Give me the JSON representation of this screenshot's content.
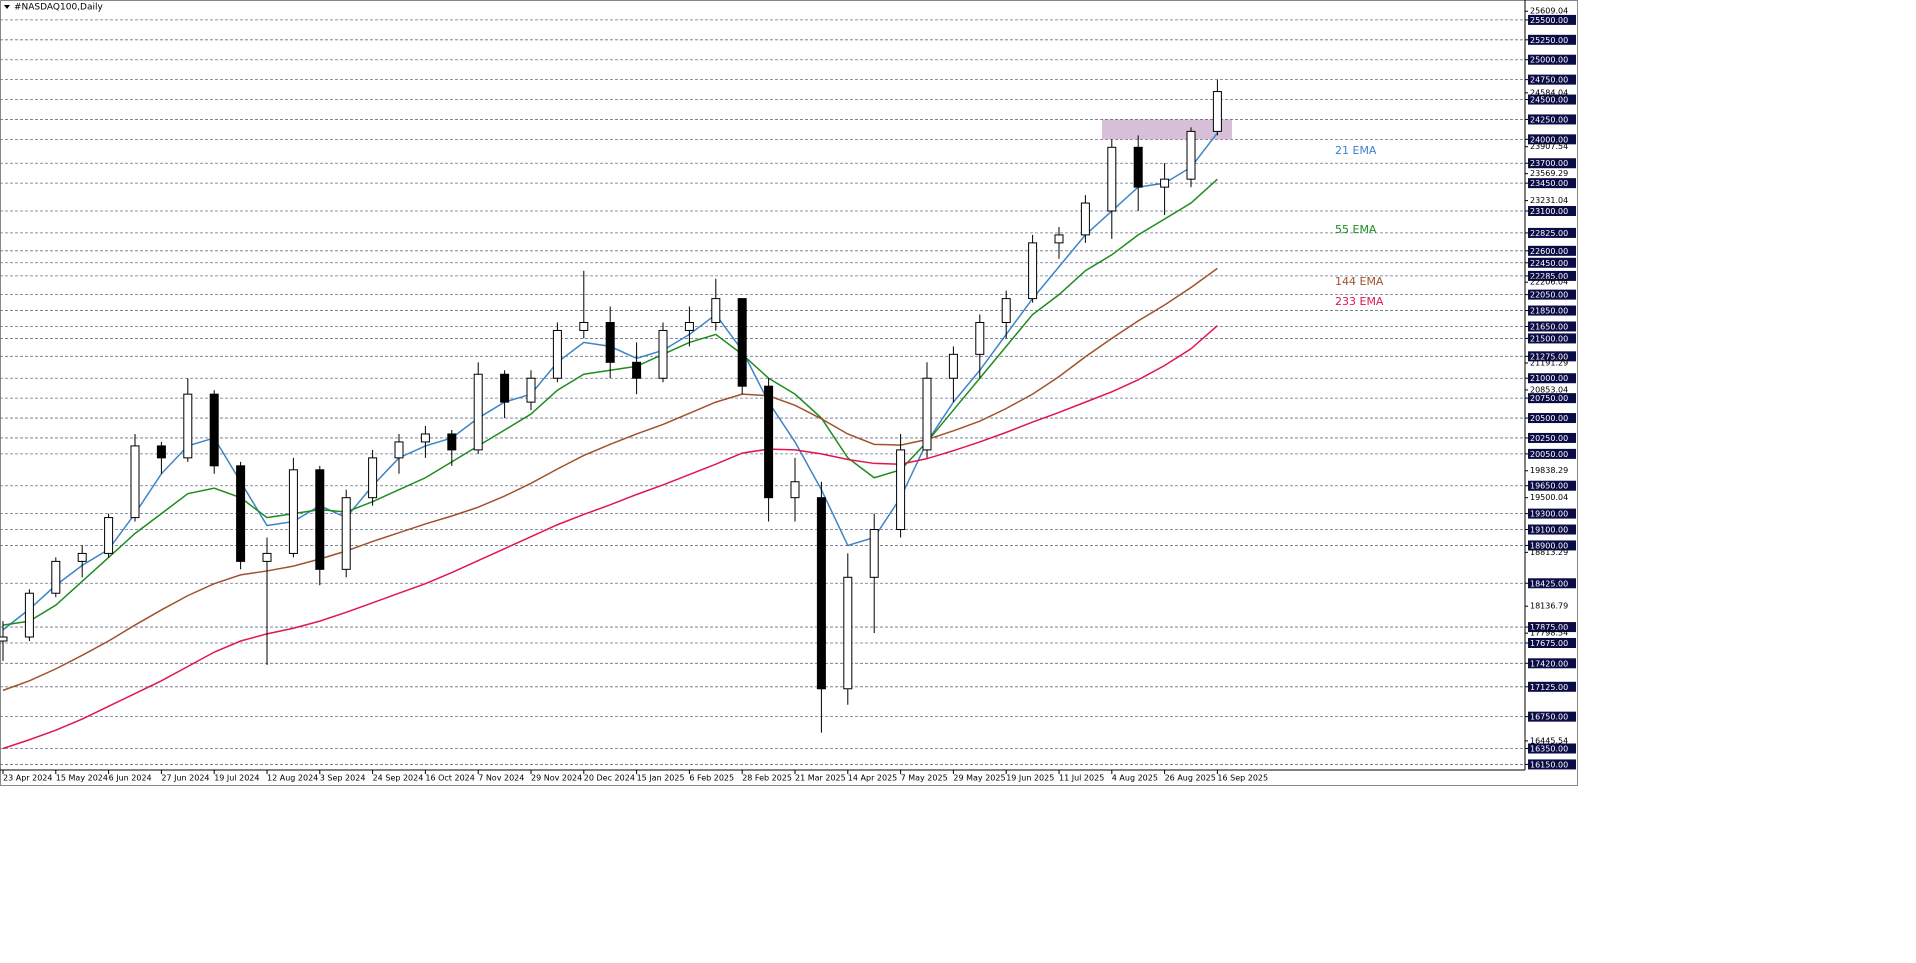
{
  "chart_data": {
    "type": "candlestick",
    "title": "#NASDAQ100,Daily",
    "categories": [
      "23 Apr 2024",
      null,
      "15 May 2024",
      null,
      "6 Jun 2024",
      null,
      "27 Jun 2024",
      null,
      "19 Jul 2024",
      null,
      "12 Aug 2024",
      null,
      "3 Sep 2024",
      null,
      "24 Sep 2024",
      null,
      "16 Oct 2024",
      null,
      "7 Nov 2024",
      null,
      "29 Nov 2024",
      null,
      "20 Dec 2024",
      null,
      "15 Jan 2025",
      null,
      "6 Feb 2025",
      null,
      "28 Feb 2025",
      null,
      "21 Mar 2025",
      null,
      "14 Apr 2025",
      null,
      "7 May 2025",
      null,
      "29 May 2025",
      null,
      "19 Jun 2025",
      null,
      "11 Jul 2025",
      null,
      "4 Aug 2025",
      null,
      "26 Aug 2025",
      null,
      "16 Sep 2025"
    ],
    "ohlc": {
      "open": [
        17700,
        17750,
        18300,
        18700,
        18800,
        19250,
        20150,
        20000,
        20800,
        19900,
        18700,
        18800,
        19850,
        18600,
        19500,
        20000,
        20200,
        20300,
        20100,
        21050,
        20700,
        21000,
        21600,
        21700,
        21200,
        21000,
        21600,
        21700,
        22000,
        20900,
        19500,
        19500,
        17100,
        18500,
        19100,
        20100,
        21000,
        21300,
        21700,
        22000,
        22700,
        22800,
        23100,
        23900,
        23400,
        23500,
        24100
      ],
      "high": [
        17950,
        18350,
        18750,
        18900,
        19300,
        20300,
        20200,
        21000,
        20850,
        19950,
        19000,
        20000,
        19900,
        19600,
        20100,
        20300,
        20400,
        20350,
        21200,
        21100,
        21100,
        21700,
        22350,
        21900,
        21450,
        21700,
        21900,
        22250,
        22000,
        21000,
        20000,
        19700,
        18800,
        19300,
        20300,
        21200,
        21400,
        21800,
        22100,
        22800,
        22900,
        23300,
        24000,
        24050,
        23700,
        24150,
        24750
      ],
      "low": [
        17450,
        17700,
        18250,
        18500,
        18750,
        19200,
        19800,
        19950,
        19800,
        18600,
        17400,
        18750,
        18400,
        18500,
        19400,
        19800,
        20000,
        19900,
        20050,
        20500,
        20600,
        20950,
        21500,
        21000,
        20800,
        20950,
        21400,
        21600,
        20800,
        19200,
        19200,
        16550,
        16900,
        17800,
        19000,
        20000,
        20700,
        21000,
        21500,
        21950,
        22500,
        22700,
        22750,
        23100,
        23050,
        23400,
        24050
      ],
      "close": [
        17750,
        18300,
        18700,
        18800,
        19250,
        20150,
        20000,
        20800,
        19900,
        18700,
        18800,
        19850,
        18600,
        19500,
        20000,
        20200,
        20300,
        20100,
        21050,
        20700,
        21000,
        21600,
        21700,
        21200,
        21000,
        21600,
        21700,
        22000,
        20900,
        19500,
        19700,
        17100,
        18500,
        19100,
        20100,
        21000,
        21300,
        21700,
        22000,
        22700,
        22800,
        23200,
        23900,
        23400,
        23500,
        24100,
        24600
      ]
    },
    "series": [
      {
        "name": "21 EMA",
        "color": "#3d85c6",
        "values": [
          17840,
          18100,
          18400,
          18650,
          18850,
          19300,
          19800,
          20150,
          20250,
          19700,
          19150,
          19200,
          19400,
          19250,
          19650,
          20000,
          20150,
          20250,
          20500,
          20700,
          20800,
          21200,
          21450,
          21400,
          21250,
          21350,
          21550,
          21800,
          21350,
          20700,
          20200,
          19600,
          18900,
          19000,
          19500,
          20200,
          20700,
          21100,
          21550,
          22000,
          22400,
          22800,
          23100,
          23400,
          23450,
          23650,
          24080
        ]
      },
      {
        "name": "55 EMA",
        "color": "#1e8c1e",
        "values": [
          17900,
          17950,
          18150,
          18450,
          18750,
          19050,
          19300,
          19550,
          19620,
          19500,
          19250,
          19300,
          19350,
          19320,
          19450,
          19600,
          19750,
          19950,
          20150,
          20350,
          20550,
          20850,
          21050,
          21100,
          21150,
          21300,
          21450,
          21550,
          21300,
          21000,
          20800,
          20500,
          20000,
          19750,
          19850,
          20200,
          20600,
          21000,
          21400,
          21800,
          22050,
          22350,
          22550,
          22800,
          23000,
          23200,
          23500
        ]
      },
      {
        "name": "144 EMA",
        "color": "#a0522d",
        "values": [
          17080,
          17200,
          17350,
          17520,
          17700,
          17900,
          18090,
          18270,
          18420,
          18530,
          18580,
          18640,
          18730,
          18830,
          18950,
          19060,
          19170,
          19270,
          19380,
          19520,
          19680,
          19860,
          20030,
          20170,
          20300,
          20420,
          20560,
          20700,
          20800,
          20780,
          20660,
          20490,
          20300,
          20170,
          20160,
          20230,
          20340,
          20460,
          20620,
          20800,
          21020,
          21270,
          21500,
          21720,
          21920,
          22140,
          22380
        ]
      },
      {
        "name": "233 EMA",
        "color": "#e0174c",
        "values": [
          16350,
          16460,
          16580,
          16720,
          16880,
          17040,
          17200,
          17380,
          17560,
          17700,
          17790,
          17860,
          17950,
          18060,
          18180,
          18300,
          18420,
          18560,
          18710,
          18860,
          19010,
          19160,
          19290,
          19410,
          19540,
          19660,
          19790,
          19920,
          20060,
          20110,
          20100,
          20050,
          19980,
          19930,
          19920,
          19990,
          20090,
          20200,
          20320,
          20450,
          20570,
          20700,
          20830,
          20980,
          21160,
          21370,
          21660
        ]
      }
    ],
    "zone": {
      "low": 24000,
      "high": 24250,
      "color": "#d8bfd8"
    },
    "ylim": [
      16080,
      25750
    ],
    "yticks": [
      {
        "value": 25500,
        "label": "25500.00"
      },
      {
        "value": 25250,
        "label": "25250.00"
      },
      {
        "value": 25000,
        "label": "25000.00"
      },
      {
        "value": 24750,
        "label": "24750.00"
      },
      {
        "value": 24500,
        "label": "24500.00"
      },
      {
        "value": 24250,
        "label": "24250.00"
      },
      {
        "value": 24000,
        "label": "24000.00"
      },
      {
        "value": 23700,
        "label": "23700.00"
      },
      {
        "value": 23450,
        "label": "23450.00"
      },
      {
        "value": 23100,
        "label": "23100.00"
      },
      {
        "value": 22825,
        "label": "22825.00"
      },
      {
        "value": 22600,
        "label": "22600.00"
      },
      {
        "value": 22450,
        "label": "22450.00"
      },
      {
        "value": 22285,
        "label": "22285.00"
      },
      {
        "value": 22050,
        "label": "22050.00"
      },
      {
        "value": 21850,
        "label": "21850.00"
      },
      {
        "value": 21650,
        "label": "21650.00"
      },
      {
        "value": 21500,
        "label": "21500.00"
      },
      {
        "value": 21275,
        "label": "21275.00"
      },
      {
        "value": 21000,
        "label": "21000.00"
      },
      {
        "value": 20750,
        "label": "20750.00"
      },
      {
        "value": 20500,
        "label": "20500.00"
      },
      {
        "value": 20250,
        "label": "20250.00"
      },
      {
        "value": 20050,
        "label": "20050.00"
      },
      {
        "value": 19650,
        "label": "19650.00"
      },
      {
        "value": 19300,
        "label": "19300.00"
      },
      {
        "value": 19100,
        "label": "19100.00"
      },
      {
        "value": 18900,
        "label": "18900.00"
      },
      {
        "value": 18425,
        "label": "18425.00"
      },
      {
        "value": 17875,
        "label": "17875.00"
      },
      {
        "value": 17675,
        "label": "17675.00"
      },
      {
        "value": 17420,
        "label": "17420.00"
      },
      {
        "value": 17125,
        "label": "17125.00"
      },
      {
        "value": 16750,
        "label": "16750.00"
      },
      {
        "value": 16350,
        "label": "16350.00"
      },
      {
        "value": 16150,
        "label": "16150.00"
      }
    ],
    "y_scale_labels": [
      25609.04,
      24584.04,
      23907.54,
      23569.29,
      23231.04,
      22206.04,
      21191.29,
      20853.04,
      19838.29,
      19500.04,
      18813.29,
      18136.79,
      17798.54,
      16445.54
    ],
    "grid": true
  }
}
